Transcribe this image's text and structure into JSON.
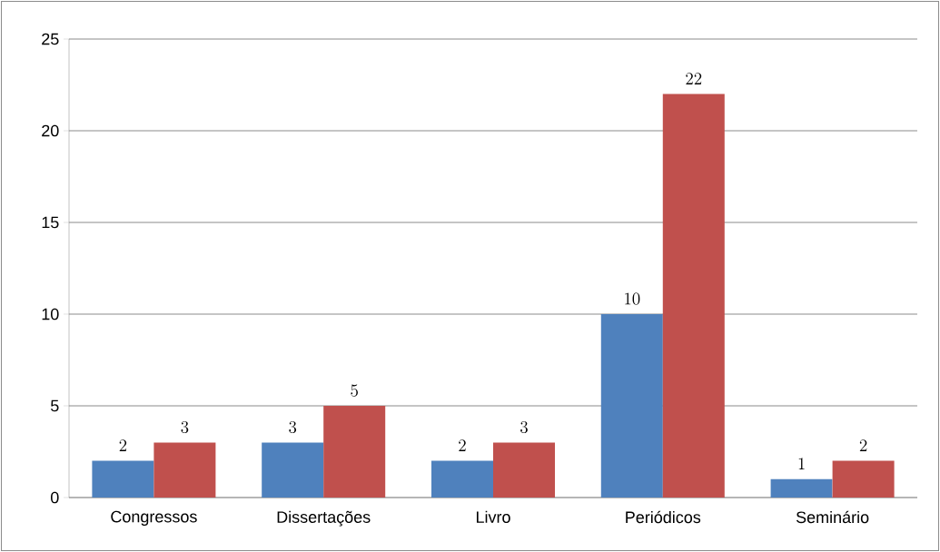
{
  "chart_data": {
    "type": "bar",
    "categories": [
      "Congressos",
      "Dissertações",
      "Livro",
      "Periódicos",
      "Seminário"
    ],
    "series": [
      {
        "color": "#4f81bd",
        "values": [
          2,
          3,
          2,
          10,
          1
        ]
      },
      {
        "color": "#c0504d",
        "values": [
          3,
          5,
          3,
          22,
          2
        ]
      }
    ],
    "ylim": [
      0,
      25
    ],
    "yticks": [
      0,
      5,
      10,
      15,
      20,
      25
    ],
    "grid": "y",
    "data_labels": true
  }
}
